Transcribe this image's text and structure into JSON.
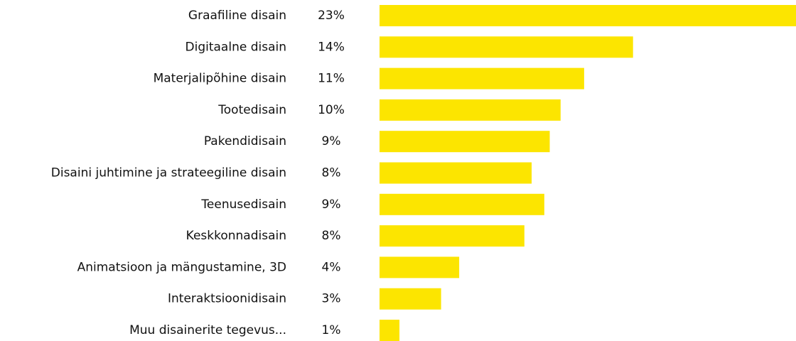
{
  "chart_data": {
    "type": "bar",
    "orientation": "horizontal",
    "categories": [
      "Graafiline disain",
      "Digitaalne disain",
      "Materjalipõhine disain",
      "Tootedisain",
      "Pakendidisain",
      "Disaini juhtimine ja strateegiline disain",
      "Teenusedisain",
      "Keskkonnadisain",
      "Animatsioon ja mängustamine, 3D",
      "Interaktsioonidisain",
      "Muu disainerite tegevus..."
    ],
    "values": [
      23,
      14.0,
      11.3,
      10.0,
      9.4,
      8.4,
      9.1,
      8.0,
      4.4,
      3.4,
      1.1
    ],
    "value_labels": [
      "23%",
      "14%",
      "11%",
      "10%",
      "9%",
      "8%",
      "9%",
      "8%",
      "4%",
      "3%",
      "1%"
    ],
    "color": "#fce500"
  }
}
